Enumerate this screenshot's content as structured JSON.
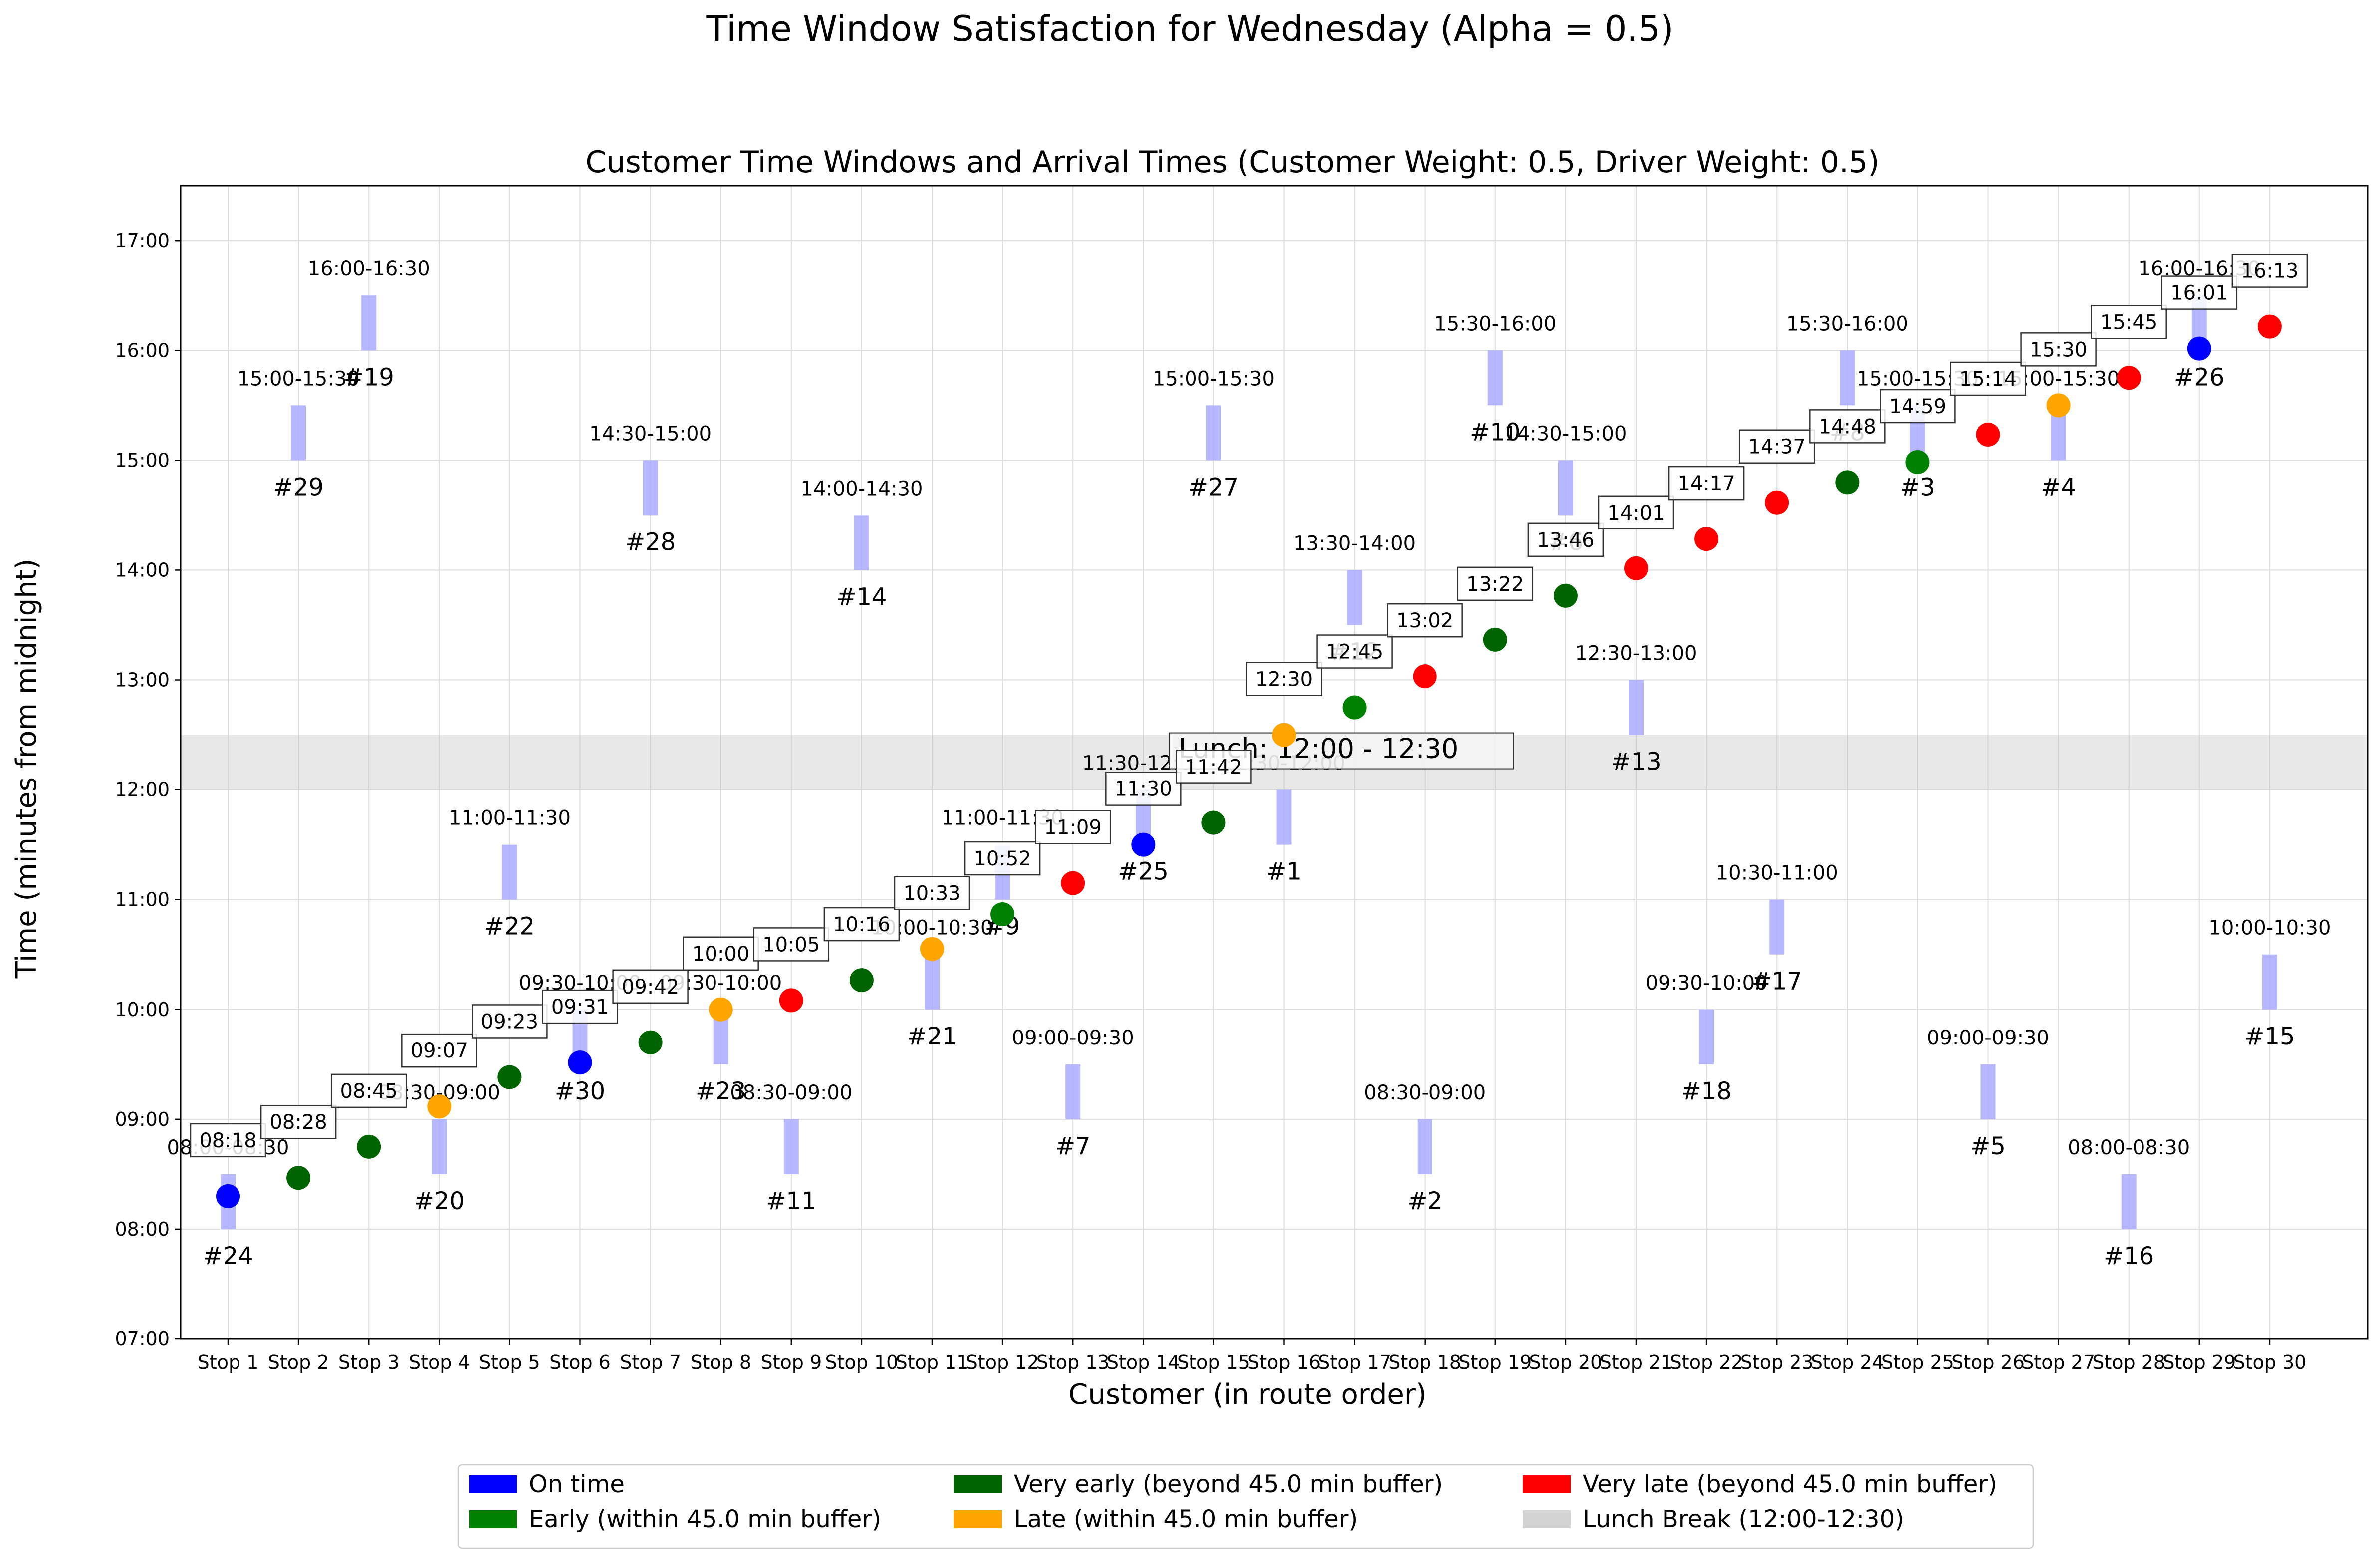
{
  "suptitle": "Time Window Satisfaction for Wednesday (Alpha = 0.5)",
  "chart_data": {
    "type": "scatter",
    "title": "Customer Time Windows and Arrival Times (Customer Weight: 0.5, Driver Weight: 0.5)",
    "xlabel": "Customer (in route order)",
    "ylabel": "Time (minutes from midnight)",
    "ylim": [
      "07:00",
      "17:30"
    ],
    "grid": true,
    "categories": [
      "Stop 1",
      "Stop 2",
      "Stop 3",
      "Stop 4",
      "Stop 5",
      "Stop 6",
      "Stop 7",
      "Stop 8",
      "Stop 9",
      "Stop 10",
      "Stop 11",
      "Stop 12",
      "Stop 13",
      "Stop 14",
      "Stop 15",
      "Stop 16",
      "Stop 17",
      "Stop 18",
      "Stop 19",
      "Stop 20",
      "Stop 21",
      "Stop 22",
      "Stop 23",
      "Stop 24",
      "Stop 25",
      "Stop 26",
      "Stop 27",
      "Stop 28",
      "Stop 29",
      "Stop 30"
    ],
    "y_ticks": [
      "07:00",
      "08:00",
      "09:00",
      "10:00",
      "11:00",
      "12:00",
      "13:00",
      "14:00",
      "15:00",
      "16:00",
      "17:00"
    ],
    "lunch_break": {
      "start": "12:00",
      "end": "12:30",
      "label": "Lunch: 12:00 - 12:30"
    },
    "statuses": {
      "on_time": {
        "label": "On time",
        "color": "#0000ff"
      },
      "early": {
        "label": "Early (within 45.0 min buffer)",
        "color": "#008000"
      },
      "very_early": {
        "label": "Very early (beyond 45.0 min buffer)",
        "color": "#006400"
      },
      "late": {
        "label": "Late (within 45.0 min buffer)",
        "color": "#ffa500"
      },
      "very_late": {
        "label": "Very late (beyond 45.0 min buffer)",
        "color": "#ff0000"
      },
      "lunch": {
        "label": "Lunch Break (12:00-12:30)",
        "color": "#d3d3d3"
      }
    },
    "legend_order": [
      "on_time",
      "early",
      "very_early",
      "late",
      "very_late",
      "lunch"
    ],
    "window_color": "#aaaaff",
    "stops": [
      {
        "stop": 1,
        "customer": "#24",
        "window": [
          "08:00",
          "08:30"
        ],
        "window_label": "08:00-08:30",
        "arrival": "08:18",
        "status": "on_time"
      },
      {
        "stop": 2,
        "customer": "#29",
        "window": [
          "15:00",
          "15:30"
        ],
        "window_label": "15:00-15:30",
        "arrival": "08:28",
        "status": "very_early"
      },
      {
        "stop": 3,
        "customer": "#19",
        "window": [
          "16:00",
          "16:30"
        ],
        "window_label": "16:00-16:30",
        "arrival": "08:45",
        "status": "very_early"
      },
      {
        "stop": 4,
        "customer": "#20",
        "window": [
          "08:30",
          "09:00"
        ],
        "window_label": "08:30-09:00",
        "arrival": "09:07",
        "status": "late"
      },
      {
        "stop": 5,
        "customer": "#22",
        "window": [
          "11:00",
          "11:30"
        ],
        "window_label": "11:00-11:30",
        "arrival": "09:23",
        "status": "very_early"
      },
      {
        "stop": 6,
        "customer": "#30",
        "window": [
          "09:30",
          "10:00"
        ],
        "window_label": "09:30-10:00",
        "arrival": "09:31",
        "status": "on_time"
      },
      {
        "stop": 7,
        "customer": "#28",
        "window": [
          "14:30",
          "15:00"
        ],
        "window_label": "14:30-15:00",
        "arrival": "09:42",
        "status": "very_early"
      },
      {
        "stop": 8,
        "customer": "#23",
        "window": [
          "09:30",
          "10:00"
        ],
        "window_label": "09:30-10:00",
        "arrival": "10:00",
        "status": "late"
      },
      {
        "stop": 9,
        "customer": "#11",
        "window": [
          "08:30",
          "09:00"
        ],
        "window_label": "08:30-09:00",
        "arrival": "10:05",
        "status": "very_late"
      },
      {
        "stop": 10,
        "customer": "#14",
        "window": [
          "14:00",
          "14:30"
        ],
        "window_label": "14:00-14:30",
        "arrival": "10:16",
        "status": "very_early"
      },
      {
        "stop": 11,
        "customer": "#21",
        "window": [
          "10:00",
          "10:30"
        ],
        "window_label": "10:00-10:30",
        "arrival": "10:33",
        "status": "late"
      },
      {
        "stop": 12,
        "customer": "#9",
        "window": [
          "11:00",
          "11:30"
        ],
        "window_label": "11:00-11:30",
        "arrival": "10:52",
        "status": "early"
      },
      {
        "stop": 13,
        "customer": "#7",
        "window": [
          "09:00",
          "09:30"
        ],
        "window_label": "09:00-09:30",
        "arrival": "11:09",
        "status": "very_late"
      },
      {
        "stop": 14,
        "customer": "#25",
        "window": [
          "11:30",
          "12:00"
        ],
        "window_label": "11:30-12:00",
        "arrival": "11:30",
        "status": "on_time"
      },
      {
        "stop": 15,
        "customer": "#27",
        "window": [
          "15:00",
          "15:30"
        ],
        "window_label": "15:00-15:30",
        "arrival": "11:42",
        "status": "very_early"
      },
      {
        "stop": 16,
        "customer": "#1",
        "window": [
          "11:30",
          "12:00"
        ],
        "window_label": "11:30-12:00",
        "arrival": "12:30",
        "status": "late"
      },
      {
        "stop": 17,
        "customer": "#12",
        "window": [
          "13:30",
          "14:00"
        ],
        "window_label": "13:30-14:00",
        "arrival": "12:45",
        "status": "early"
      },
      {
        "stop": 18,
        "customer": "#2",
        "window": [
          "08:30",
          "09:00"
        ],
        "window_label": "08:30-09:00",
        "arrival": "13:02",
        "status": "very_late"
      },
      {
        "stop": 19,
        "customer": "#10",
        "window": [
          "15:30",
          "16:00"
        ],
        "window_label": "15:30-16:00",
        "arrival": "13:22",
        "status": "very_early"
      },
      {
        "stop": 20,
        "customer": "#6",
        "window": [
          "14:30",
          "15:00"
        ],
        "window_label": "14:30-15:00",
        "arrival": "13:46",
        "status": "very_early"
      },
      {
        "stop": 21,
        "customer": "#13",
        "window": [
          "12:30",
          "13:00"
        ],
        "window_label": "12:30-13:00",
        "arrival": "14:01",
        "status": "very_late"
      },
      {
        "stop": 22,
        "customer": "#18",
        "window": [
          "09:30",
          "10:00"
        ],
        "window_label": "09:30-10:00",
        "arrival": "14:17",
        "status": "very_late"
      },
      {
        "stop": 23,
        "customer": "#17",
        "window": [
          "10:30",
          "11:00"
        ],
        "window_label": "10:30-11:00",
        "arrival": "14:37",
        "status": "very_late"
      },
      {
        "stop": 24,
        "customer": "#8",
        "window": [
          "15:30",
          "16:00"
        ],
        "window_label": "15:30-16:00",
        "arrival": "14:48",
        "status": "very_early"
      },
      {
        "stop": 25,
        "customer": "#3",
        "window": [
          "15:00",
          "15:30"
        ],
        "window_label": "15:00-15:30",
        "arrival": "14:59",
        "status": "early"
      },
      {
        "stop": 26,
        "customer": "#5",
        "window": [
          "09:00",
          "09:30"
        ],
        "window_label": "09:00-09:30",
        "arrival": "15:14",
        "status": "very_late"
      },
      {
        "stop": 27,
        "customer": "#4",
        "window": [
          "15:00",
          "15:30"
        ],
        "window_label": "15:00-15:30",
        "arrival": "15:30",
        "status": "late"
      },
      {
        "stop": 28,
        "customer": "#16",
        "window": [
          "08:00",
          "08:30"
        ],
        "window_label": "08:00-08:30",
        "arrival": "15:45",
        "status": "very_late"
      },
      {
        "stop": 29,
        "customer": "#26",
        "window": [
          "16:00",
          "16:30"
        ],
        "window_label": "16:00-16:30",
        "arrival": "16:01",
        "status": "on_time"
      },
      {
        "stop": 30,
        "customer": "#15",
        "window": [
          "10:00",
          "10:30"
        ],
        "window_label": "10:00-10:30",
        "arrival": "16:13",
        "status": "very_late"
      }
    ]
  }
}
